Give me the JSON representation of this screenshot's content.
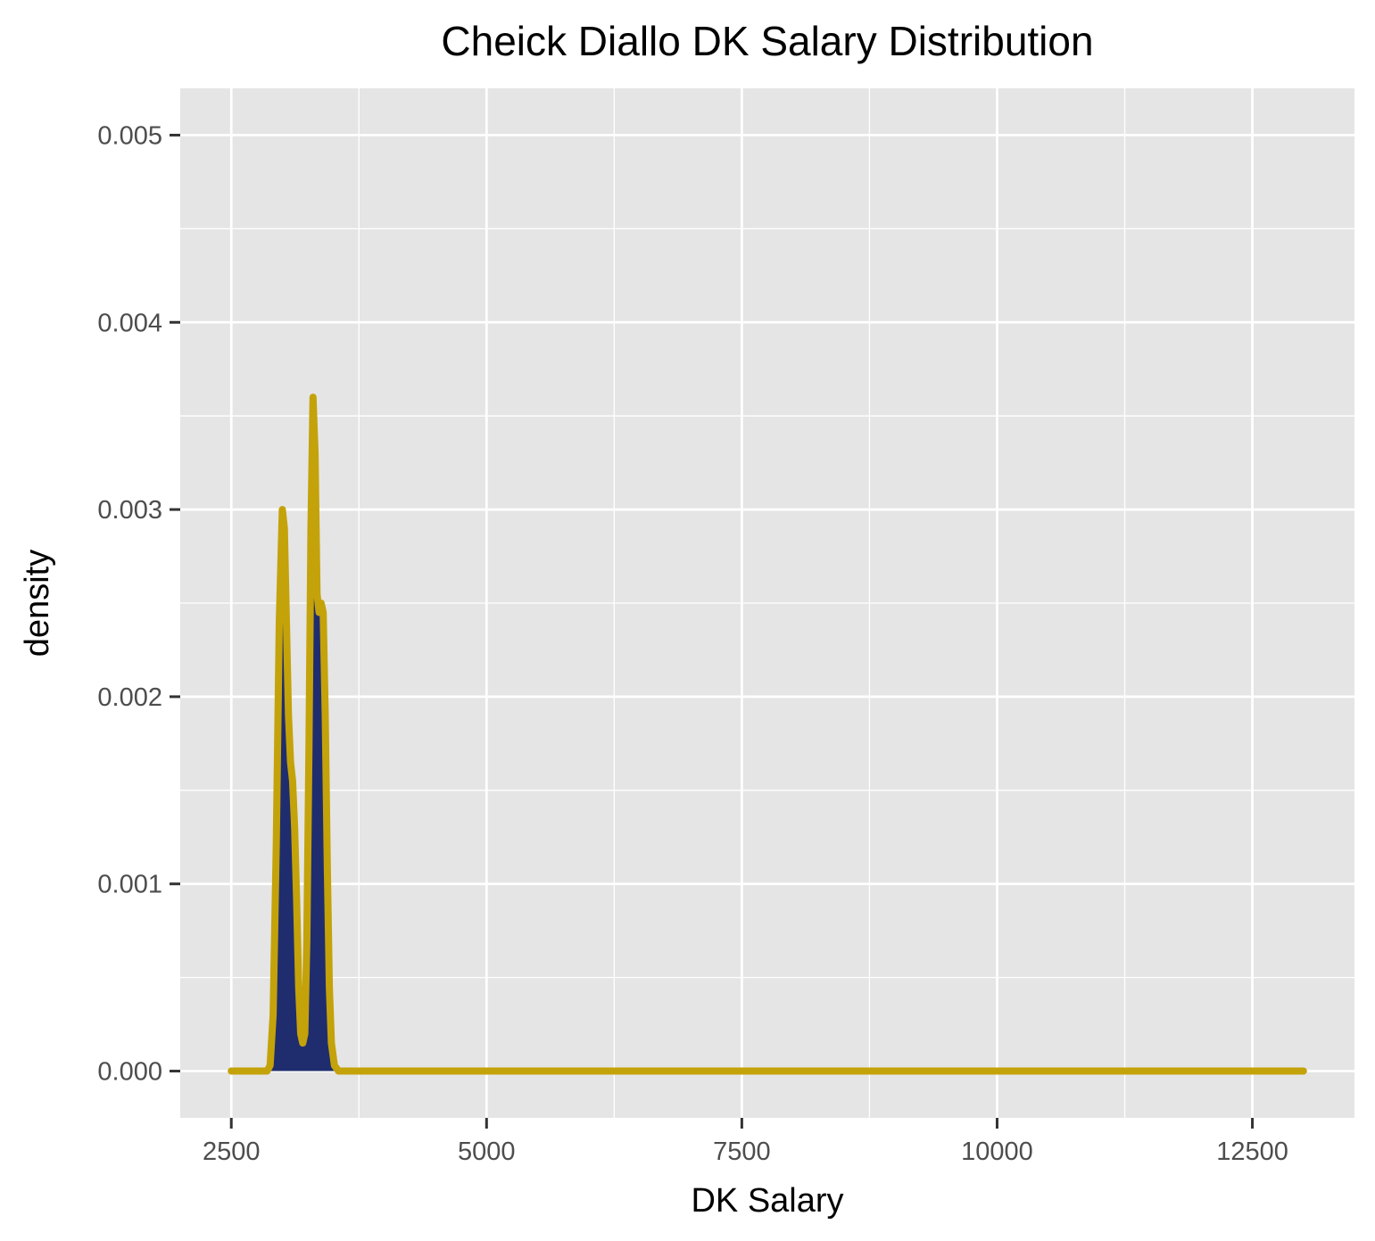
{
  "chart_data": {
    "type": "area",
    "title": "Cheick Diallo DK Salary Distribution",
    "xlabel": "DK Salary",
    "ylabel": "density",
    "xlim": [
      2000,
      13500
    ],
    "ylim": [
      -0.00025,
      0.00525
    ],
    "x_ticks": [
      2500,
      5000,
      7500,
      10000,
      12500
    ],
    "x_tick_labels": [
      "2500",
      "5000",
      "7500",
      "10000",
      "12500"
    ],
    "y_ticks": [
      0,
      0.001,
      0.002,
      0.003,
      0.004,
      0.005
    ],
    "y_tick_labels": [
      "0.000",
      "0.001",
      "0.002",
      "0.003",
      "0.004",
      "0.005"
    ],
    "grid": true,
    "legend": "none",
    "colors": {
      "panel": "#E5E5E5",
      "grid": "#FFFFFF",
      "fill": "#1F2D6E",
      "line": "#C4A20A"
    },
    "series": [
      {
        "x": [
          2500,
          2850,
          2880,
          2910,
          2940,
          2970,
          3000,
          3020,
          3040,
          3060,
          3080,
          3100,
          3120,
          3140,
          3160,
          3180,
          3200,
          3220,
          3240,
          3260,
          3280,
          3300,
          3320,
          3340,
          3360,
          3380,
          3400,
          3420,
          3440,
          3460,
          3480,
          3510,
          3550,
          3600,
          13000
        ],
        "y": [
          0,
          0,
          3e-05,
          0.0003,
          0.0012,
          0.0024,
          0.003,
          0.0029,
          0.0024,
          0.0019,
          0.00165,
          0.00155,
          0.0013,
          0.0009,
          0.00045,
          0.0002,
          0.00015,
          0.0002,
          0.0007,
          0.0017,
          0.0029,
          0.0036,
          0.0033,
          0.00255,
          0.00245,
          0.0025,
          0.00245,
          0.0019,
          0.0011,
          0.00045,
          0.00015,
          3e-05,
          0,
          0,
          0
        ]
      }
    ]
  }
}
